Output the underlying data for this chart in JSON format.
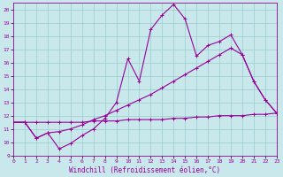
{
  "bg_color": "#c8e8ec",
  "line_color": "#990099",
  "grid_color": "#99cccc",
  "xlabel": "Windchill (Refroidissement éolien,°C)",
  "xlim": [
    0,
    23
  ],
  "ylim": [
    9,
    20.5
  ],
  "xticks": [
    0,
    1,
    2,
    3,
    4,
    5,
    6,
    7,
    8,
    9,
    10,
    11,
    12,
    13,
    14,
    15,
    16,
    17,
    18,
    19,
    20,
    21,
    22,
    23
  ],
  "yticks": [
    9,
    10,
    11,
    12,
    13,
    14,
    15,
    16,
    17,
    18,
    19,
    20
  ],
  "line1_x": [
    0,
    1,
    2,
    3,
    4,
    5,
    6,
    7,
    8,
    9,
    10,
    11,
    12,
    13,
    14,
    15,
    16,
    17,
    18,
    19,
    20,
    21,
    22,
    23
  ],
  "line1_y": [
    11.5,
    11.5,
    10.3,
    10.7,
    9.5,
    9.9,
    10.5,
    11.0,
    11.8,
    13.0,
    16.3,
    14.6,
    18.5,
    19.6,
    20.4,
    19.3,
    16.5,
    17.3,
    17.6,
    18.1,
    16.6,
    14.6,
    13.2,
    12.2
  ],
  "line2_x": [
    0,
    1,
    2,
    3,
    4,
    5,
    6,
    7,
    8,
    9,
    10,
    11,
    12,
    13,
    14,
    15,
    16,
    17,
    18,
    19,
    20,
    21,
    22,
    23
  ],
  "line2_y": [
    11.5,
    11.5,
    10.3,
    10.7,
    10.8,
    11.0,
    11.3,
    11.7,
    12.0,
    12.4,
    12.8,
    13.2,
    13.6,
    14.1,
    14.6,
    15.1,
    15.6,
    16.1,
    16.6,
    17.1,
    16.6,
    14.6,
    13.2,
    12.2
  ],
  "line3_x": [
    0,
    1,
    2,
    3,
    4,
    5,
    6,
    7,
    8,
    9,
    10,
    11,
    12,
    13,
    14,
    15,
    16,
    17,
    18,
    19,
    20,
    21,
    22,
    23
  ],
  "line3_y": [
    11.5,
    11.5,
    11.5,
    11.5,
    11.5,
    11.5,
    11.5,
    11.6,
    11.6,
    11.6,
    11.7,
    11.7,
    11.7,
    11.7,
    11.8,
    11.8,
    11.9,
    11.9,
    12.0,
    12.0,
    12.0,
    12.1,
    12.1,
    12.2
  ]
}
